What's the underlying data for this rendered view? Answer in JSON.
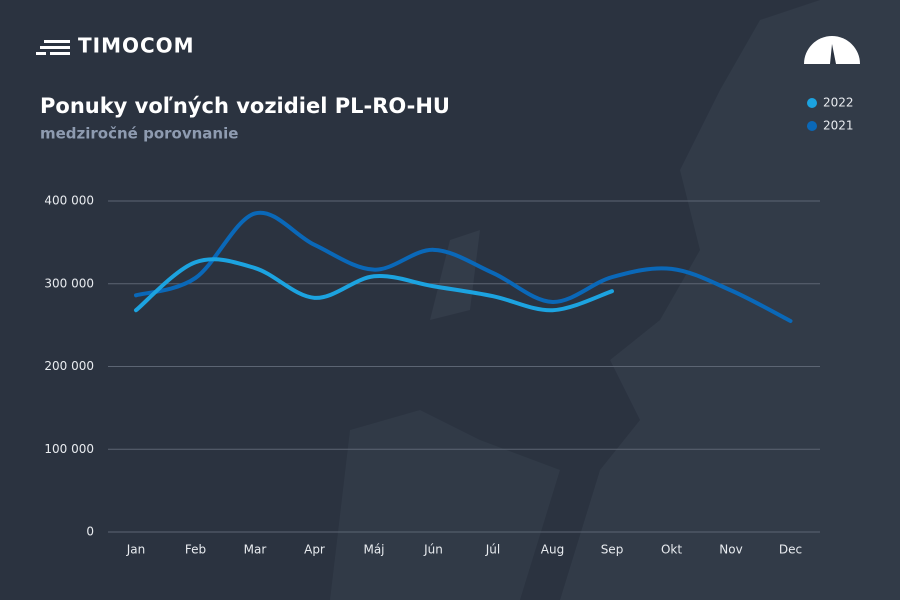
{
  "header": {
    "brand": "TIMOCOM"
  },
  "chart_data": {
    "type": "line",
    "title": "Ponuky voľných vozidiel  PL-RO-HU",
    "subtitle": "medziročné porovnanie",
    "categories": [
      "Jan",
      "Feb",
      "Mar",
      "Apr",
      "Máj",
      "Jún",
      "Júl",
      "Aug",
      "Sep",
      "Okt",
      "Nov",
      "Dec"
    ],
    "series": [
      {
        "name": "2022",
        "color": "#1ca3e0",
        "values": [
          268000,
          326000,
          319000,
          283000,
          309000,
          297000,
          285000,
          268000,
          291000,
          null,
          null,
          null
        ]
      },
      {
        "name": "2021",
        "color": "#0a68b8",
        "values": [
          286000,
          307000,
          385000,
          347000,
          317000,
          341000,
          313000,
          278000,
          308000,
          318000,
          292000,
          255000
        ]
      }
    ],
    "ylim": [
      0,
      400000
    ],
    "yticks": [
      0,
      {
        "value": 100000,
        "label": "100 000"
      },
      {
        "value": 200000,
        "label": "200 000"
      },
      {
        "value": 300000,
        "label": "300 000"
      },
      {
        "value": 400000,
        "label": "400 000"
      }
    ],
    "grid": true,
    "legend": "top-right"
  }
}
